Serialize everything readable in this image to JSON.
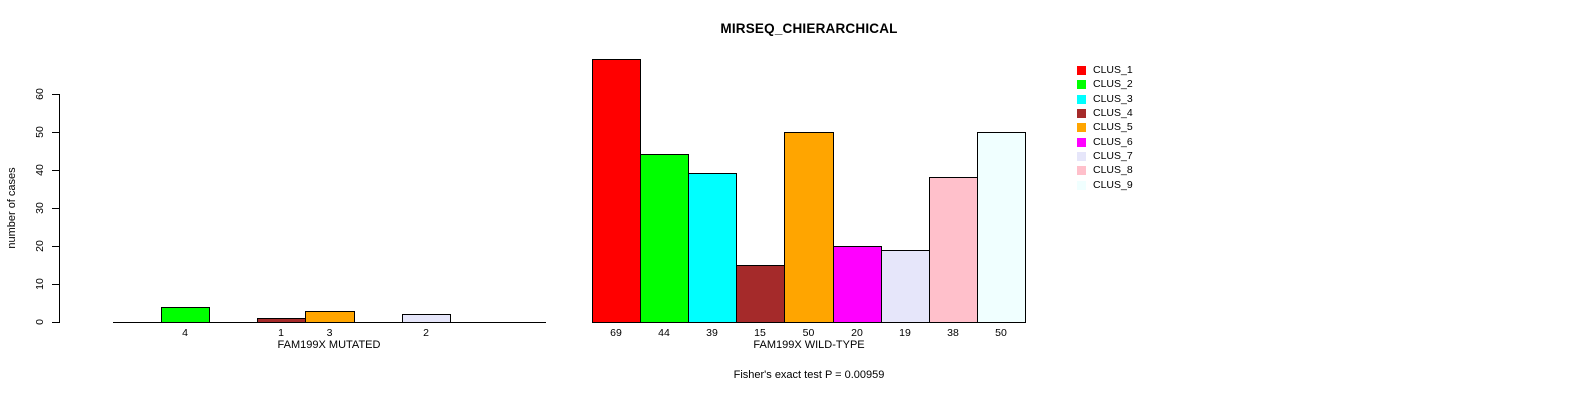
{
  "title": "MIRSEQ_CHIERARCHICAL",
  "chart_data": {
    "type": "bar",
    "title": "MIRSEQ_CHIERARCHICAL",
    "ylabel": "number of cases",
    "ylim": [
      0,
      60
    ],
    "yticks": [
      0,
      10,
      20,
      30,
      40,
      50,
      60
    ],
    "grid": false,
    "categories": [
      "CLUS_1",
      "CLUS_2",
      "CLUS_3",
      "CLUS_4",
      "CLUS_5",
      "CLUS_6",
      "CLUS_7",
      "CLUS_8",
      "CLUS_9"
    ],
    "colors": [
      "#FF0000",
      "#00FF00",
      "#00FFFF",
      "#A52A2A",
      "#FFA500",
      "#FF00FF",
      "#E6E6FA",
      "#FFC0CB",
      "#F0FFFF"
    ],
    "panels": [
      {
        "xlabel": "FAM199X MUTATED",
        "values": [
          0,
          4,
          0,
          1,
          3,
          0,
          2,
          0,
          0
        ],
        "bar_labels": [
          "",
          "4",
          "",
          "1",
          "3",
          "",
          "2",
          "",
          ""
        ]
      },
      {
        "xlabel": "FAM199X WILD-TYPE",
        "values": [
          69,
          44,
          39,
          15,
          50,
          20,
          19,
          38,
          50
        ],
        "bar_labels": [
          "69",
          "44",
          "39",
          "15",
          "50",
          "20",
          "19",
          "38",
          "50"
        ]
      }
    ],
    "legend": {
      "position": "right",
      "entries": [
        {
          "label": "CLUS_1",
          "color": "#FF0000"
        },
        {
          "label": "CLUS_2",
          "color": "#00FF00"
        },
        {
          "label": "CLUS_3",
          "color": "#00FFFF"
        },
        {
          "label": "CLUS_4",
          "color": "#A52A2A"
        },
        {
          "label": "CLUS_5",
          "color": "#FFA500"
        },
        {
          "label": "CLUS_6",
          "color": "#FF00FF"
        },
        {
          "label": "CLUS_7",
          "color": "#E6E6FA"
        },
        {
          "label": "CLUS_8",
          "color": "#FFC0CB"
        },
        {
          "label": "CLUS_9",
          "color": "#F0FFFF"
        }
      ]
    },
    "annotation": "Fisher's exact test P = 0.00959"
  }
}
